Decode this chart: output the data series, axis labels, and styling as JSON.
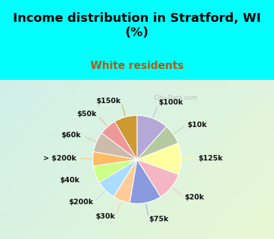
{
  "title": "Income distribution in Stratford, WI\n(%)",
  "subtitle": "White residents",
  "title_color": "#000000",
  "subtitle_color": "#b05a10",
  "bg_top": "#00ffff",
  "watermark": "City-Data.com",
  "labels": [
    "$100k",
    "$10k",
    "$125k",
    "$20k",
    "$75k",
    "$30k",
    "$200k",
    "$40k",
    "> $200k",
    "$60k",
    "$50k",
    "$150k"
  ],
  "values": [
    11,
    7,
    11,
    10,
    11,
    6,
    7,
    6,
    5,
    7,
    6,
    8
  ],
  "colors": [
    "#b3a8d8",
    "#b5c9a0",
    "#ffffa0",
    "#f4b6c2",
    "#8899dd",
    "#ffcc99",
    "#aaddff",
    "#ccff88",
    "#ffbb66",
    "#ccbbaa",
    "#ee9999",
    "#cc9933"
  ],
  "start_angle": 90,
  "figsize": [
    4.0,
    3.5
  ],
  "dpi": 100,
  "title_fontsize": 13,
  "subtitle_fontsize": 11,
  "label_fontsize": 7.5
}
